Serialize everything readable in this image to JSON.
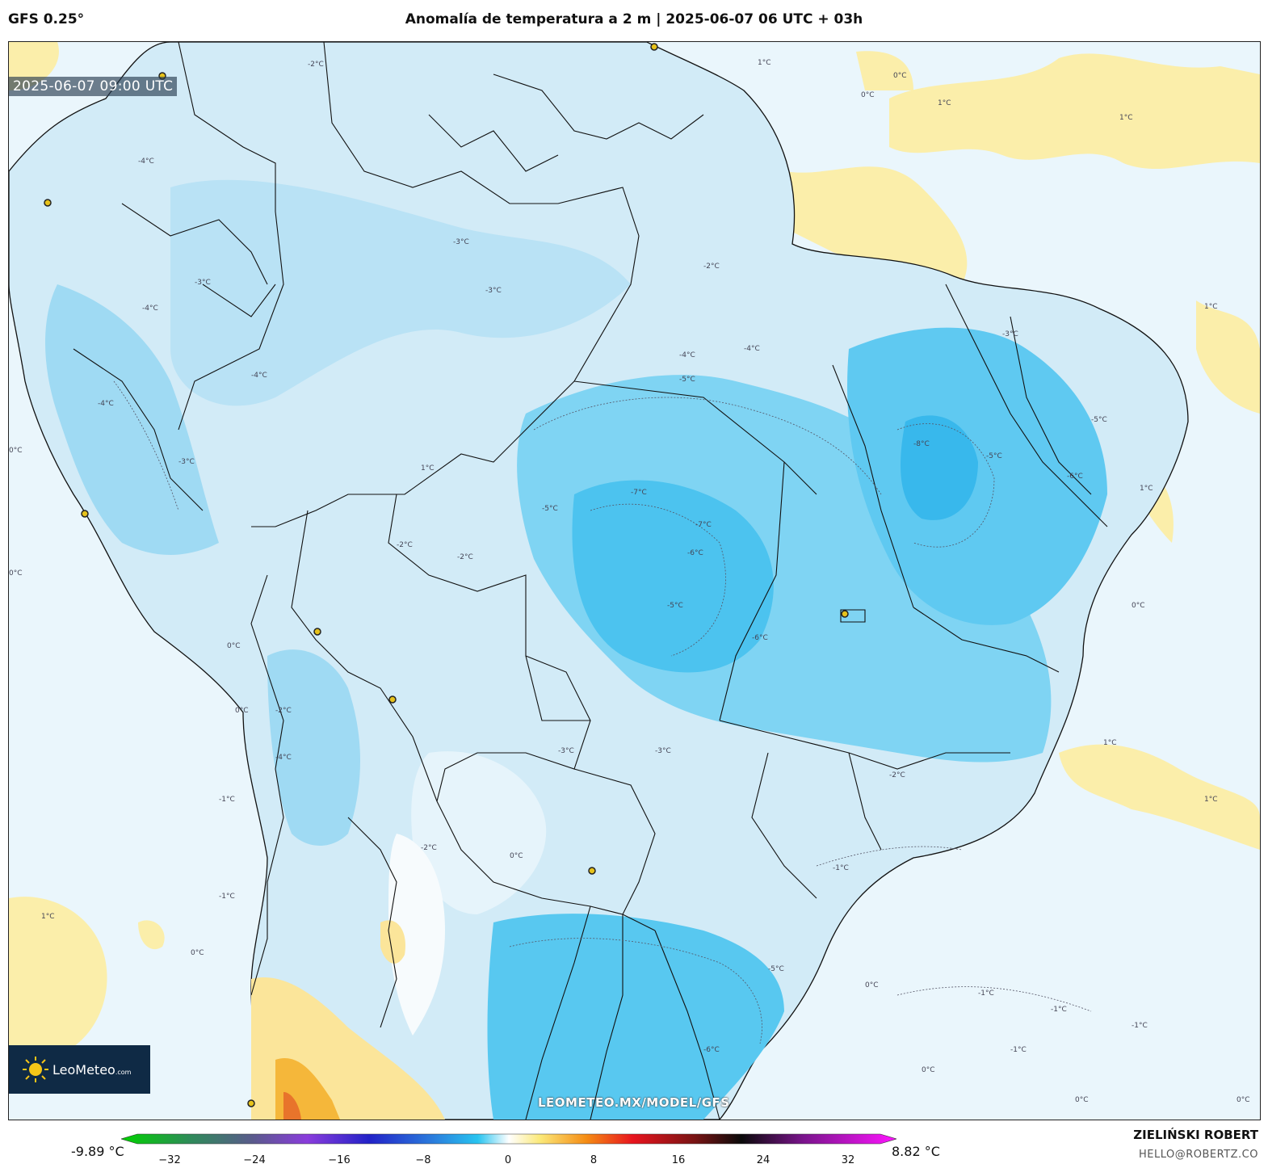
{
  "header": {
    "model": "GFS 0.25°",
    "title": "Anomalía de temperatura a 2 m | 2025-06-07 06 UTC + 03h"
  },
  "map": {
    "valid_time": "2025-06-07 09:00 UTC",
    "watermark": "LEOMETEO.MX/MODEL/GFS",
    "contour_labels": [
      "1°C",
      "0°C",
      "-1°C",
      "-2°C",
      "-3°C",
      "-4°C",
      "-5°C",
      "-6°C",
      "-7°C",
      "-8°C"
    ],
    "colors": {
      "ocean": "#e9f6fd",
      "land_light": "#d4ecf7",
      "anom_cool": "#a8dcf3",
      "anom_cold": "#58c8f0",
      "anom_vcold": "#35b6ea",
      "warm": "#fbeeaa",
      "hot": "#f5b73a",
      "border": "#111111"
    }
  },
  "logo": {
    "brand": "LeoMeteo",
    "suffix": ".com"
  },
  "colorbar": {
    "min_label": "-9.89 °C",
    "max_label": "8.82 °C",
    "ticks": [
      "−32",
      "−24",
      "−16",
      "−8",
      "0",
      "8",
      "16",
      "24",
      "32"
    ]
  },
  "credit": {
    "name": "ZIELIŃSKI ROBERT",
    "email": "HELLO@ROBERTZ.CO"
  }
}
